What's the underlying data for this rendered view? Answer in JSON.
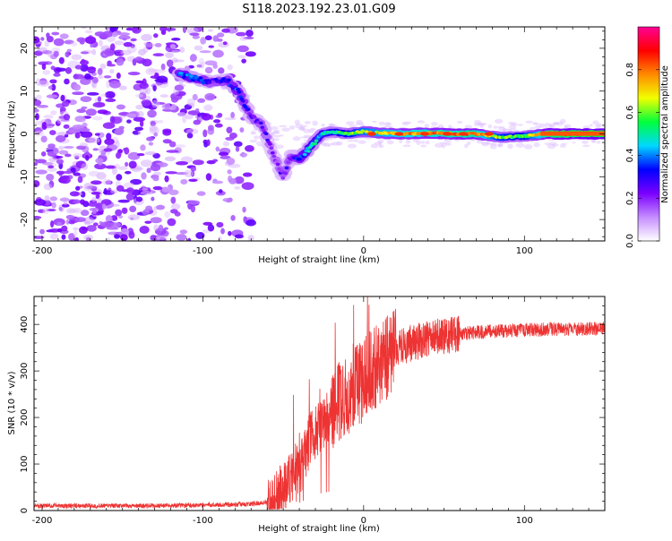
{
  "figure": {
    "title": "S118.2023.192.23.01.G09"
  },
  "chart_data": [
    {
      "type": "heatmap",
      "xlabel": "Height of straight line (km)",
      "ylabel": "Frequency (Hz)",
      "xlim": [
        -205,
        150
      ],
      "ylim": [
        -25,
        25
      ],
      "x_ticks": [
        -200,
        -100,
        0,
        100
      ],
      "y_ticks": [
        -20,
        -10,
        0,
        10,
        20
      ],
      "colorbar": {
        "label": "Normalized spectral amplitude",
        "range": [
          0,
          1
        ],
        "ticks": [
          0.0,
          0.2,
          0.4,
          0.6,
          0.8
        ],
        "colors": [
          "#ffffff",
          "#c58cff",
          "#7a00ff",
          "#0000ff",
          "#00d8ff",
          "#00ff3c",
          "#f2ff00",
          "#ff8a00",
          "#ff0000",
          "#ff0096"
        ]
      },
      "ridge": [
        {
          "x": -115,
          "y": 14,
          "a": 0.35
        },
        {
          "x": -105,
          "y": 13,
          "a": 0.4
        },
        {
          "x": -95,
          "y": 12,
          "a": 0.25
        },
        {
          "x": -85,
          "y": 12.5,
          "a": 0.3
        },
        {
          "x": -78,
          "y": 10,
          "a": 0.35
        },
        {
          "x": -70,
          "y": 4,
          "a": 0.25
        },
        {
          "x": -63,
          "y": 2,
          "a": 0.25
        },
        {
          "x": -56,
          "y": -5,
          "a": 0.2
        },
        {
          "x": -50,
          "y": -10,
          "a": 0.25
        },
        {
          "x": -45,
          "y": -5,
          "a": 0.25
        },
        {
          "x": -40,
          "y": -6,
          "a": 0.35
        },
        {
          "x": -33,
          "y": -3,
          "a": 0.45
        },
        {
          "x": -26,
          "y": 0,
          "a": 0.45
        },
        {
          "x": -20,
          "y": 0.5,
          "a": 0.5
        },
        {
          "x": -10,
          "y": 0,
          "a": 0.55
        },
        {
          "x": 0,
          "y": 0.6,
          "a": 0.65
        },
        {
          "x": 10,
          "y": 0.2,
          "a": 0.7
        },
        {
          "x": 25,
          "y": 0,
          "a": 0.75
        },
        {
          "x": 40,
          "y": 0.2,
          "a": 0.78
        },
        {
          "x": 55,
          "y": 0,
          "a": 0.8
        },
        {
          "x": 70,
          "y": 0,
          "a": 0.82
        },
        {
          "x": 85,
          "y": -0.8,
          "a": 0.6
        },
        {
          "x": 100,
          "y": -0.5,
          "a": 0.55
        },
        {
          "x": 115,
          "y": 0,
          "a": 0.85
        },
        {
          "x": 130,
          "y": 0,
          "a": 0.9
        },
        {
          "x": 150,
          "y": 0,
          "a": 0.92
        }
      ]
    },
    {
      "type": "line",
      "xlabel": "Height of straight line (km)",
      "ylabel": "SNR (10 * v/v)",
      "xlim": [
        -205,
        150
      ],
      "ylim": [
        0,
        460
      ],
      "x_ticks": [
        -200,
        -100,
        0,
        100
      ],
      "y_ticks": [
        0,
        100,
        200,
        300,
        400
      ],
      "color": "#ee3333",
      "series": [
        {
          "x": [
            -205,
            -180,
            -160,
            -140,
            -120,
            -100,
            -80,
            -70,
            -60,
            -55,
            -50,
            -45,
            -42,
            -40,
            -38,
            -35,
            -32,
            -28,
            -25,
            -22,
            -20,
            -18,
            -15,
            -12,
            -10,
            -8,
            -5,
            0,
            5,
            10,
            15,
            20,
            25,
            30,
            40,
            50,
            60,
            70,
            80,
            90,
            100,
            110,
            120,
            130,
            140,
            150
          ],
          "y": [
            10,
            10,
            10,
            10,
            11,
            12,
            13,
            14,
            18,
            25,
            45,
            75,
            95,
            80,
            100,
            140,
            160,
            180,
            190,
            200,
            210,
            220,
            235,
            245,
            250,
            255,
            265,
            280,
            300,
            315,
            330,
            345,
            355,
            360,
            370,
            375,
            380,
            383,
            385,
            387,
            388,
            389,
            390,
            390,
            391,
            391
          ]
        }
      ]
    }
  ]
}
